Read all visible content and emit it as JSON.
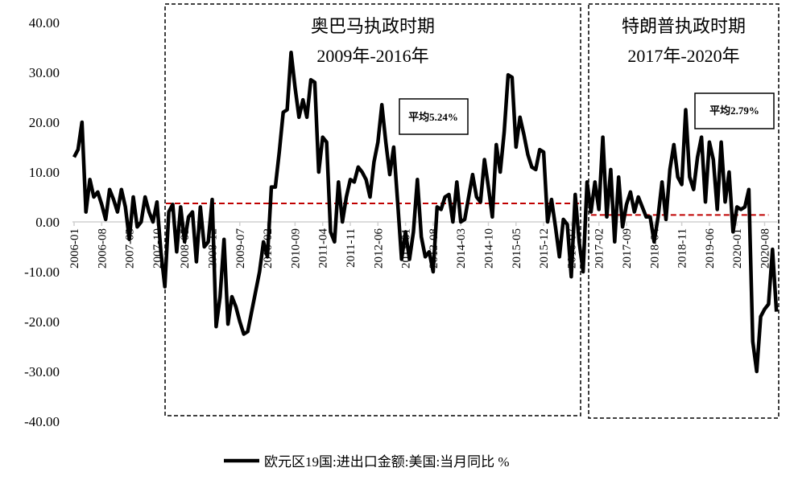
{
  "chart_data": {
    "type": "line",
    "title": "",
    "xlabel": "",
    "ylabel": "",
    "ylim": [
      -40,
      40
    ],
    "y_ticks": [
      "40.00",
      "30.00",
      "20.00",
      "10.00",
      "0.00",
      "-10.00",
      "-20.00",
      "-30.00",
      "-40.00"
    ],
    "y_tick_values": [
      40,
      30,
      20,
      10,
      0,
      -10,
      -20,
      -30,
      -40
    ],
    "x_start": "2006-01",
    "x_tick_labels": [
      "2006-01",
      "2006-08",
      "2007-03",
      "2007-10",
      "2008-05",
      "2008-12",
      "2009-07",
      "2010-02",
      "2010-09",
      "2011-04",
      "2011-11",
      "2012-06",
      "2013-01",
      "2013-08",
      "2014-03",
      "2014-10",
      "2015-05",
      "2015-12",
      "2016-07",
      "2017-02",
      "2017-09",
      "2018-04",
      "2018-11",
      "2019-06",
      "2020-01",
      "2020-08"
    ],
    "x_tick_step_months": 7,
    "grid": false,
    "legend_position": "bottom",
    "series": [
      {
        "name": "欧元区19国:进出口金额:美国:当月同比 %",
        "color": "#000000",
        "values": [
          13,
          14.5,
          20,
          2,
          8.5,
          5,
          6,
          3.5,
          0.5,
          6.5,
          4.5,
          2,
          6.5,
          3,
          -3.5,
          5,
          -1,
          0,
          5,
          2,
          0,
          4,
          -6,
          -13,
          2,
          3.5,
          -6,
          3,
          -4,
          1,
          2,
          -8,
          3,
          -5,
          -4,
          4.5,
          -21,
          -15,
          -3.5,
          -20.5,
          -15,
          -17,
          -20,
          -22.5,
          -22,
          -18,
          -14,
          -10,
          -4,
          -7,
          7,
          7,
          14,
          22,
          22.5,
          34,
          27,
          21,
          24.5,
          21,
          28.5,
          28,
          10,
          17,
          16,
          -2,
          -4,
          8,
          0,
          5,
          8.5,
          8,
          11,
          10,
          8.5,
          5,
          12,
          16,
          23.5,
          16,
          9.5,
          15,
          4,
          -7.5,
          -2,
          -7.5,
          -2,
          8.5,
          -3,
          -7,
          -6,
          -10,
          3,
          2.5,
          5,
          5.5,
          0,
          8,
          0,
          0.5,
          5,
          9.5,
          5,
          4,
          12.5,
          7,
          1,
          15.5,
          10,
          18,
          29.5,
          29,
          15,
          21,
          17.5,
          13.5,
          11,
          10.5,
          14.5,
          14,
          0,
          4.5,
          -1,
          -7,
          0.5,
          -0.5,
          -11,
          5.5,
          -4,
          -10,
          8,
          2,
          8,
          2.5,
          17,
          1,
          10.5,
          -4,
          9,
          -1,
          3.5,
          6,
          2,
          5,
          3,
          1,
          1,
          -4,
          1,
          8,
          0.5,
          10.5,
          15.5,
          9,
          7.5,
          22.5,
          9,
          6.5,
          13,
          17,
          4,
          16,
          12.5,
          2.5,
          16,
          4,
          10,
          -2,
          3,
          2.5,
          3,
          6.5,
          -24,
          -30,
          -19,
          -17.5,
          -16.5,
          -5.5,
          -18
        ]
      }
    ],
    "periods": [
      {
        "title": "奥巴马执政时期",
        "subtitle": "2009年-2016年",
        "average_label": "平均5.24%",
        "avg_line_level": 3.7,
        "start": "2007-12",
        "end": "2016-09"
      },
      {
        "title": "特朗普执政时期",
        "subtitle": "2017年-2020年",
        "average_label": "平均2.79%",
        "avg_line_level": 1.4,
        "start": "2017-01",
        "end": "2020-09"
      }
    ],
    "avg_line_color": "#c00000"
  }
}
